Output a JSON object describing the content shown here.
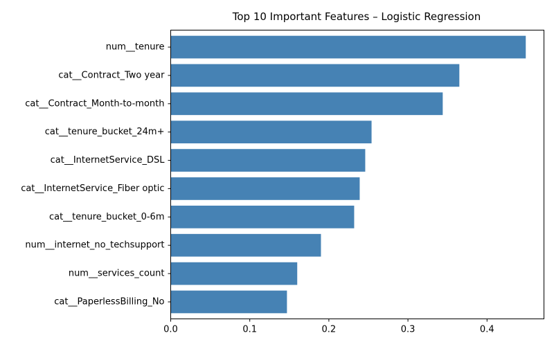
{
  "chart_data": {
    "type": "bar",
    "orientation": "horizontal",
    "title": "Top 10 Important Features – Logistic Regression",
    "xlabel": "",
    "ylabel": "",
    "xlim": [
      0,
      0.472
    ],
    "xticks": [
      0.0,
      0.1,
      0.2,
      0.3,
      0.4
    ],
    "xtick_labels": [
      "0.0",
      "0.1",
      "0.2",
      "0.3",
      "0.4"
    ],
    "grid": false,
    "bar_color": "#4682b4",
    "categories": [
      "num__tenure",
      "cat__Contract_Two year",
      "cat__Contract_Month-to-month",
      "cat__tenure_bucket_24m+",
      "cat__InternetService_DSL",
      "cat__InternetService_Fiber optic",
      "cat__tenure_bucket_0-6m",
      "num__internet_no_techsupport",
      "num__services_count",
      "cat__PaperlessBilling_No"
    ],
    "values": [
      0.449,
      0.365,
      0.344,
      0.254,
      0.246,
      0.239,
      0.232,
      0.19,
      0.16,
      0.147
    ]
  }
}
